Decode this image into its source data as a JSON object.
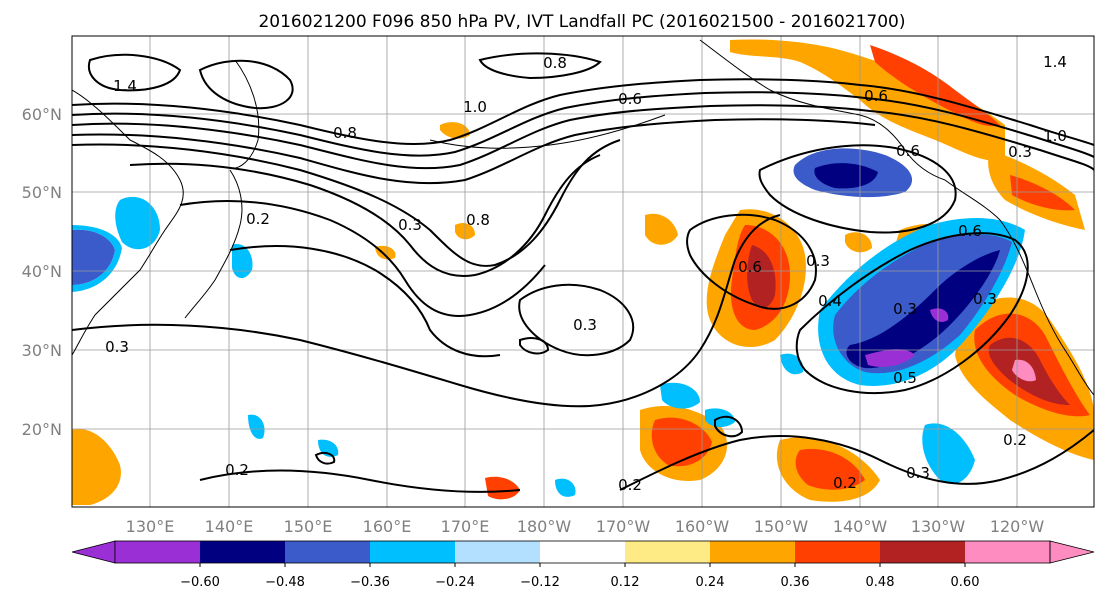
{
  "title": "2016021200 F096 850 hPa PV, IVT Landfall PC (2016021500 - 2016021700)",
  "lat_labels": [
    "60°N",
    "50°N",
    "40°N",
    "30°N",
    "20°N"
  ],
  "lon_labels": [
    "130°E",
    "140°E",
    "150°E",
    "160°E",
    "170°E",
    "180°W",
    "170°W",
    "160°W",
    "150°W",
    "140°W",
    "130°W",
    "120°W"
  ],
  "colorbar": {
    "colors": [
      "#9a2fd6",
      "#000080",
      "#3a5bc9",
      "#00bfff",
      "#b3e0ff",
      "#ffffff",
      "#ffeb85",
      "#ffa500",
      "#ff4000",
      "#b22222",
      "#ff8cc0"
    ],
    "tick_labels": [
      "-0.60",
      "-0.48",
      "-0.36",
      "-0.24",
      "-0.12",
      "0.12",
      "0.24",
      "0.36",
      "0.48",
      "0.60"
    ],
    "extend": "both"
  },
  "contour_labels": [
    "1.4",
    "0.6",
    "1.0",
    "0.8",
    "0.6",
    "1.4",
    "1.0",
    "0.8",
    "0.6",
    "0.2",
    "0.3",
    "0.8",
    "0.3",
    "0.6",
    "0.3",
    "0.3",
    "0.4",
    "0.3",
    "0.5",
    "0.2",
    "0.3",
    "0.2",
    "0.2",
    "0.3",
    "0.6",
    "0.2",
    "0.3"
  ],
  "colors": {
    "contour": "#000000",
    "grid": "#9a9a9a",
    "axis_label": "#808080"
  }
}
